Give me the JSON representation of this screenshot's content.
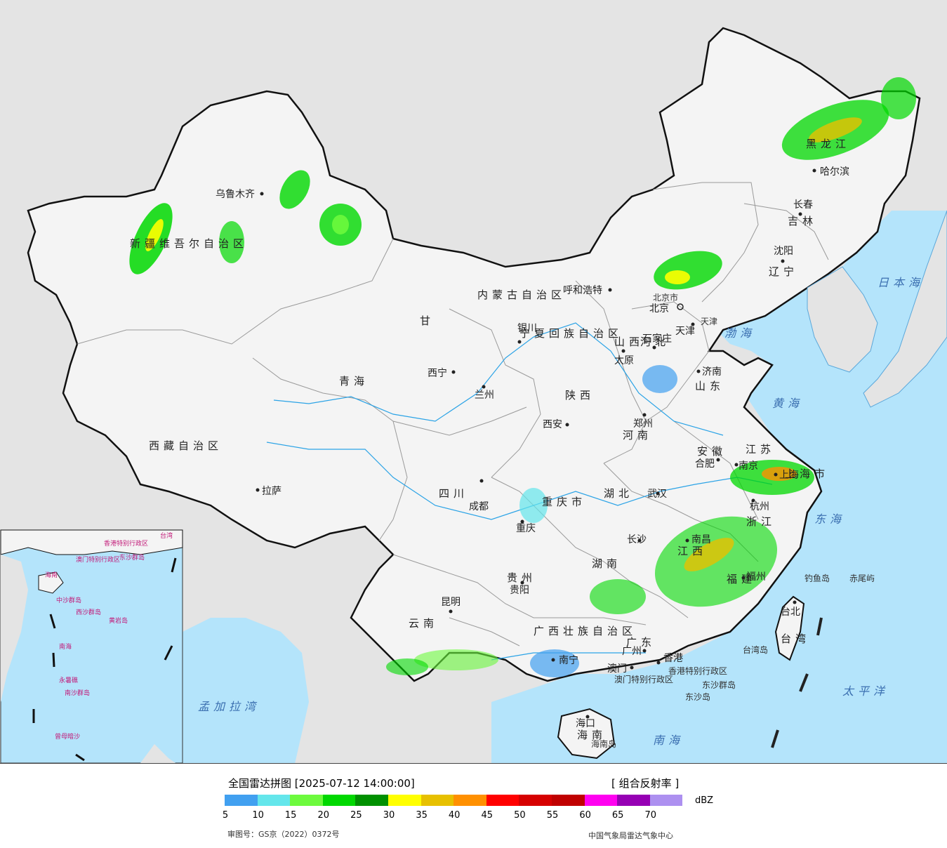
{
  "map": {
    "provinces": [
      {
        "name": "新疆维吾尔自治区"
      },
      {
        "name": "西藏自治区"
      },
      {
        "name": "青海"
      },
      {
        "name": "甘"
      },
      {
        "name": "内蒙古自治区"
      },
      {
        "name": "黑龙江"
      },
      {
        "name": "吉林"
      },
      {
        "name": "辽宁"
      },
      {
        "name": "山西"
      },
      {
        "name": "河北"
      },
      {
        "name": "山东"
      },
      {
        "name": "河南"
      },
      {
        "name": "陕西"
      },
      {
        "name": "四川"
      },
      {
        "name": "湖北"
      },
      {
        "name": "安徽"
      },
      {
        "name": "江苏"
      },
      {
        "name": "浙江"
      },
      {
        "name": "江西"
      },
      {
        "name": "湖南"
      },
      {
        "name": "贵州"
      },
      {
        "name": "云南"
      },
      {
        "name": "福建"
      },
      {
        "name": "广西壮族自治区"
      },
      {
        "name": "广东"
      },
      {
        "name": "海南"
      },
      {
        "name": "台湾"
      },
      {
        "name": "宁夏回族自治区"
      },
      {
        "name": "重庆市"
      },
      {
        "name": "上海市"
      }
    ],
    "cities": [
      {
        "name": "乌鲁木齐"
      },
      {
        "name": "拉萨"
      },
      {
        "name": "西宁"
      },
      {
        "name": "兰州"
      },
      {
        "name": "银川"
      },
      {
        "name": "呼和浩特"
      },
      {
        "name": "哈尔滨"
      },
      {
        "name": "长春"
      },
      {
        "name": "沈阳"
      },
      {
        "name": "北京"
      },
      {
        "name": "天津"
      },
      {
        "name": "石家庄"
      },
      {
        "name": "太原"
      },
      {
        "name": "济南"
      },
      {
        "name": "郑州"
      },
      {
        "name": "西安"
      },
      {
        "name": "成都"
      },
      {
        "name": "重庆"
      },
      {
        "name": "武汉"
      },
      {
        "name": "合肥"
      },
      {
        "name": "南京"
      },
      {
        "name": "上海"
      },
      {
        "name": "杭州"
      },
      {
        "name": "南昌"
      },
      {
        "name": "长沙"
      },
      {
        "name": "贵阳"
      },
      {
        "name": "昆明"
      },
      {
        "name": "福州"
      },
      {
        "name": "台北"
      },
      {
        "name": "南宁"
      },
      {
        "name": "广州"
      },
      {
        "name": "澳门"
      },
      {
        "name": "香港"
      },
      {
        "name": "海口"
      }
    ],
    "seas": [
      {
        "name": "日本海"
      },
      {
        "name": "渤海"
      },
      {
        "name": "黄海"
      },
      {
        "name": "东海"
      },
      {
        "name": "太平洋"
      },
      {
        "name": "南海"
      },
      {
        "name": "孟加拉湾"
      }
    ],
    "regions": [
      {
        "name": "香港特别行政区"
      },
      {
        "name": "澳门特别行政区"
      },
      {
        "name": "北京市"
      },
      {
        "name": "天津"
      }
    ],
    "islands": [
      {
        "name": "钓鱼岛"
      },
      {
        "name": "赤尾屿"
      },
      {
        "name": "台湾岛"
      },
      {
        "name": "东沙群岛"
      },
      {
        "name": "东沙岛"
      },
      {
        "name": "海南岛"
      }
    ],
    "inset": {
      "labels": [
        "台湾",
        "香港特别行政区",
        "澳门特别行政区",
        "东沙群岛",
        "海南",
        "中沙群岛",
        "黄岩岛",
        "南海",
        "永暑礁",
        "南沙群岛",
        "曾母暗沙",
        "西沙群岛"
      ]
    },
    "colors": {
      "land_china": "#f4f4f4",
      "land_other": "#e4e4e4",
      "sea": "#b4e4fb",
      "border": "#111111",
      "river": "#2ba3e6",
      "province_border": "#aaaaaa"
    }
  },
  "legend": {
    "title": "全国雷达拼图 [2025-07-12 14:00:00]",
    "product": "[ 组合反射率 ]",
    "unit": "dBZ",
    "colors": [
      "#41a0f0",
      "#64e6eb",
      "#6dfa3d",
      "#00d800",
      "#009000",
      "#ffff00",
      "#e7c000",
      "#ff9000",
      "#ff0000",
      "#d60000",
      "#c00000",
      "#ff00f0",
      "#9600b4",
      "#ad90f0"
    ],
    "ticks": [
      "5",
      "10",
      "15",
      "20",
      "25",
      "30",
      "35",
      "40",
      "45",
      "50",
      "55",
      "60",
      "65",
      "70"
    ],
    "approval": "审图号：GS京（2022）0372号",
    "agency": "中国气象局雷达气象中心"
  }
}
